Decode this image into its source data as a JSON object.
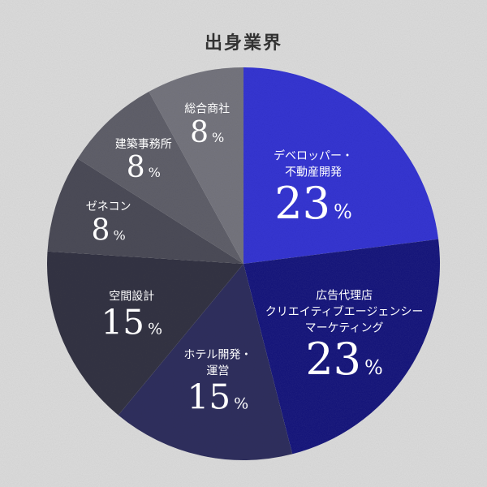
{
  "chart_data": {
    "type": "pie",
    "title": "出身業界",
    "unit": "%",
    "background": "#dcdcdc",
    "slices": [
      {
        "label_lines": [
          "デベロッパー・",
          "不動産開発"
        ],
        "value": 23,
        "color": "#3535d2"
      },
      {
        "label_lines": [
          "広告代理店",
          "クリエイティブエージェンシー",
          "マーケティング"
        ],
        "value": 23,
        "color": "#1a1a7e"
      },
      {
        "label_lines": [
          "ホテル開発・",
          "運営"
        ],
        "value": 15,
        "color": "#30305e"
      },
      {
        "label_lines": [
          "空間設計"
        ],
        "value": 15,
        "color": "#343444"
      },
      {
        "label_lines": [
          "ゼネコン"
        ],
        "value": 8,
        "color": "#4c4c58"
      },
      {
        "label_lines": [
          "建築事務所"
        ],
        "value": 8,
        "color": "#60606a"
      },
      {
        "label_lines": [
          "総合商社"
        ],
        "value": 8,
        "color": "#75757e"
      }
    ]
  }
}
